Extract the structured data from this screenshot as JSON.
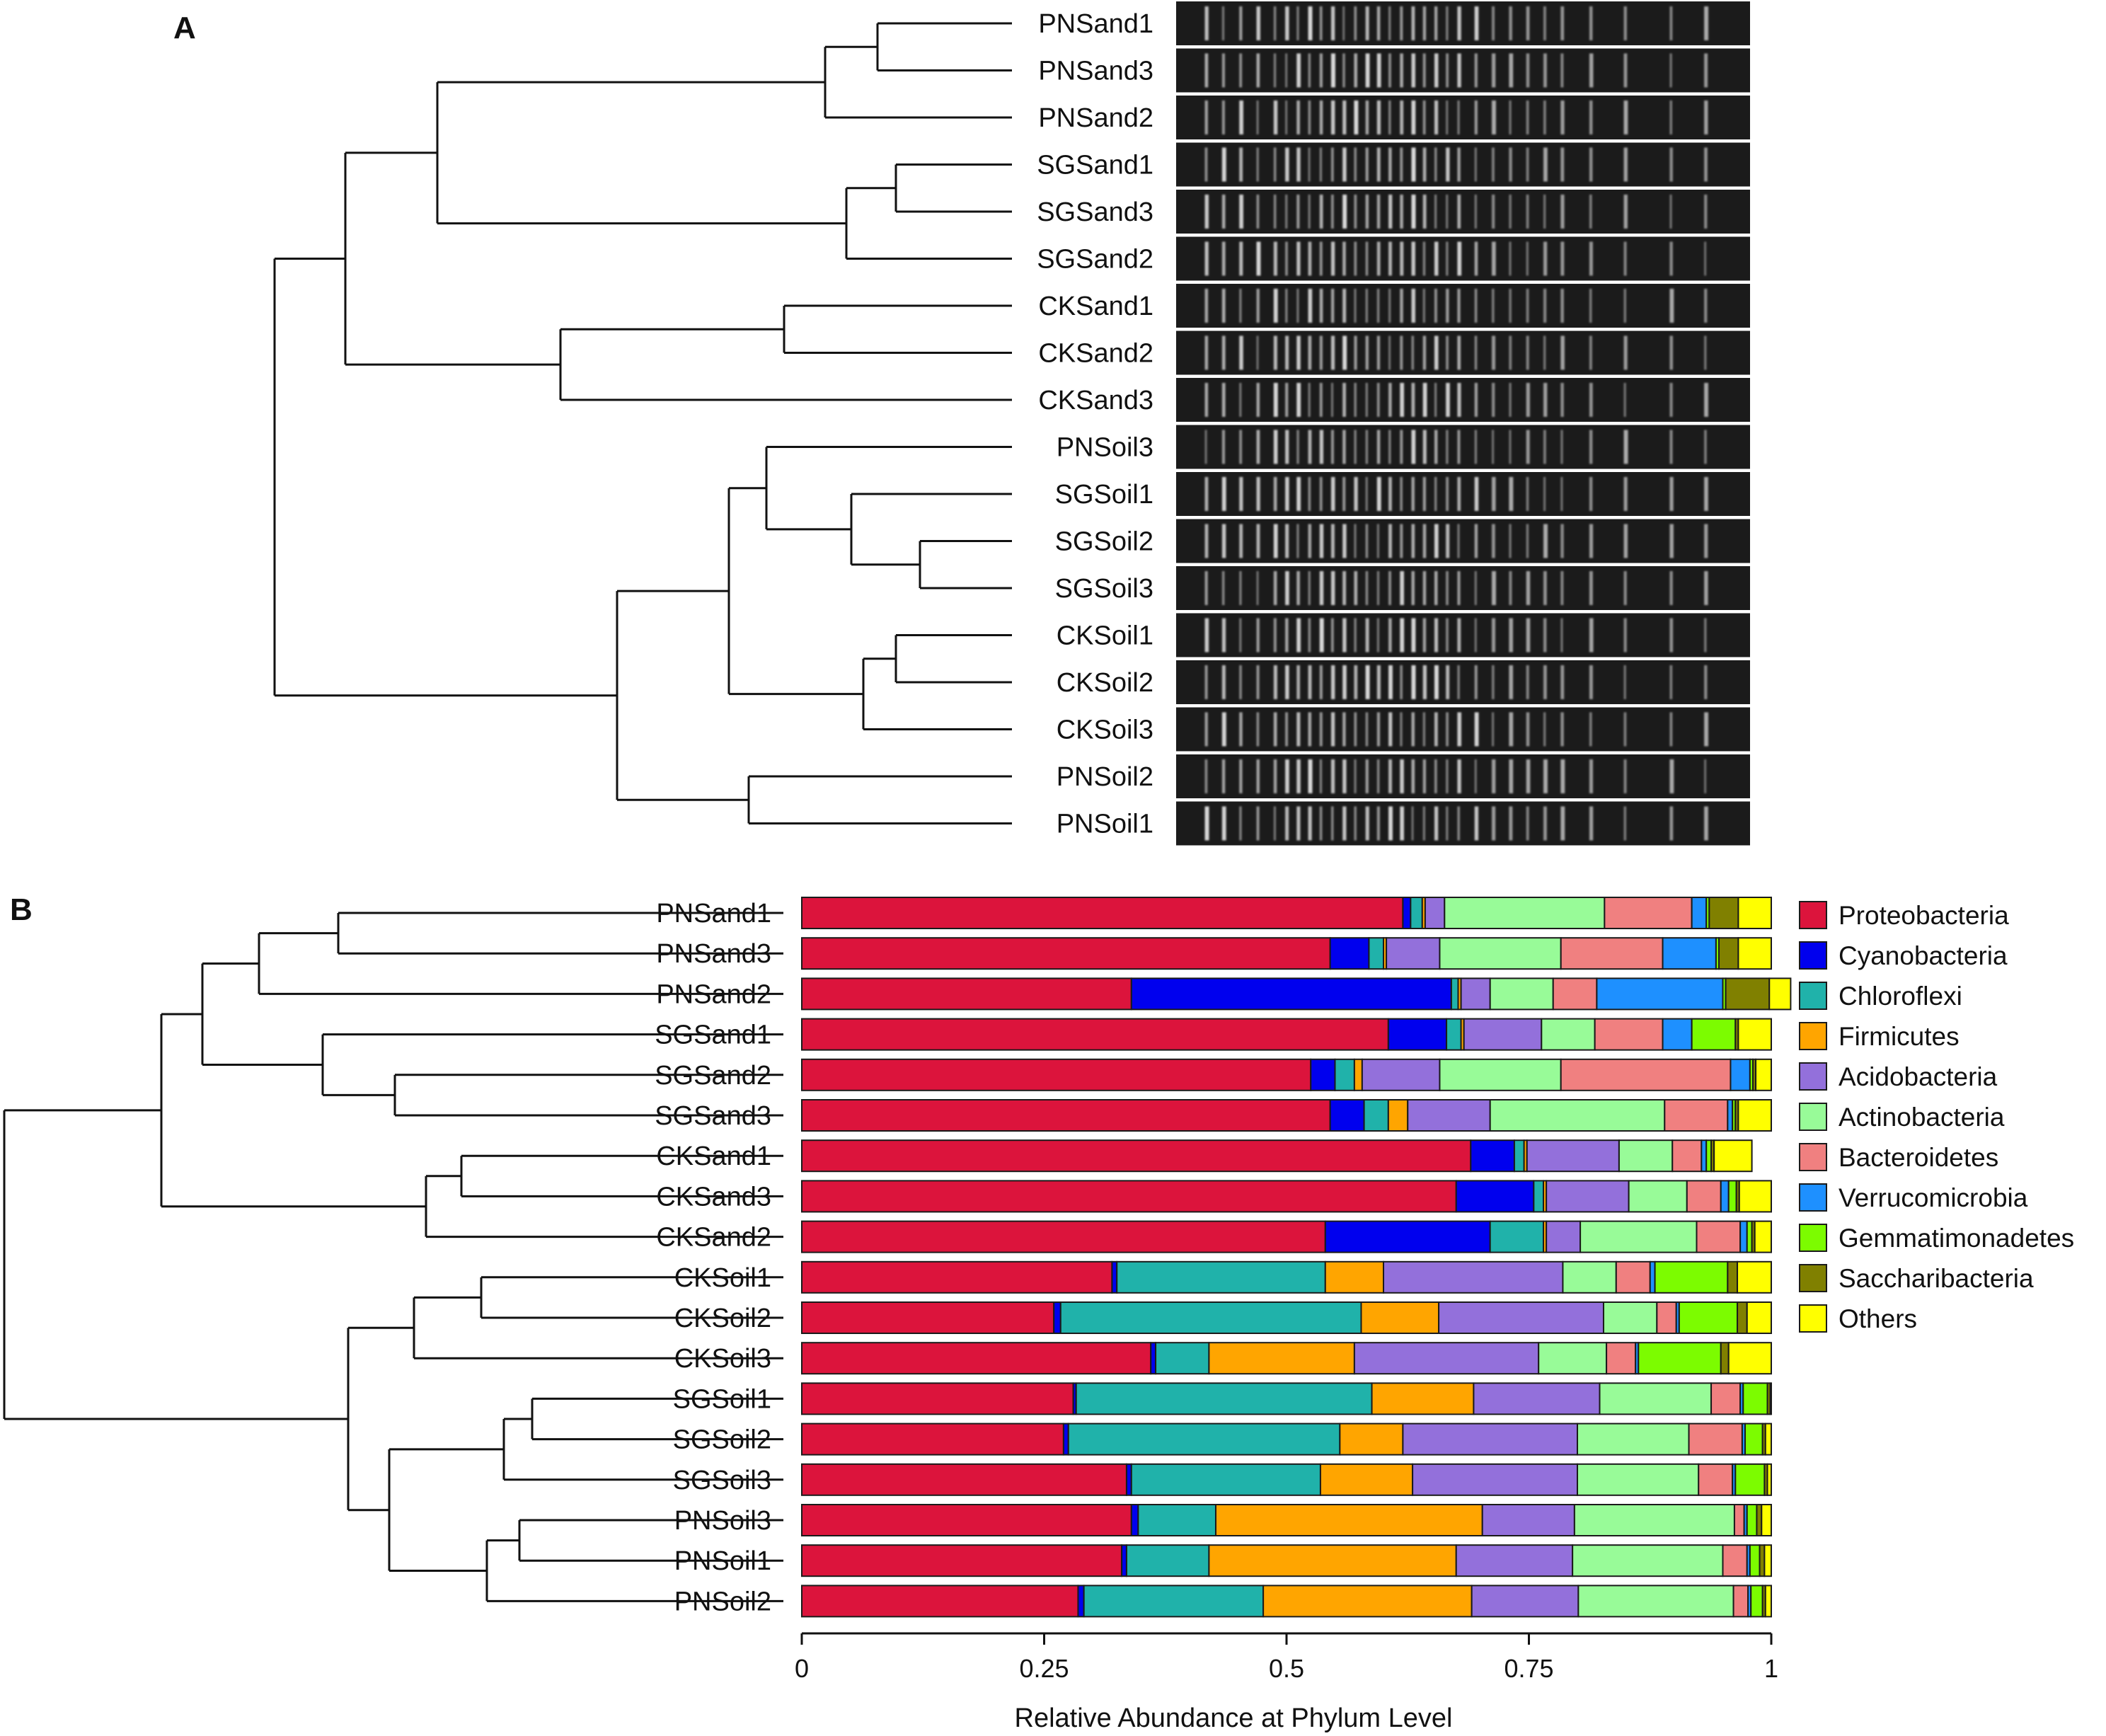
{
  "chart_data": [
    {
      "panel": "A",
      "type": "dendrogram_gel",
      "samples": [
        "PNSand1",
        "PNSand3",
        "PNSand2",
        "SGSand1",
        "SGSand3",
        "SGSand2",
        "CKSand1",
        "CKSand2",
        "CKSand3",
        "PNSoil3",
        "SGSoil1",
        "SGSoil2",
        "SGSoil3",
        "CKSoil1",
        "CKSoil2",
        "CKSoil3",
        "PNSoil2",
        "PNSoil1"
      ]
    },
    {
      "panel": "B",
      "type": "bar",
      "orientation": "horizontal",
      "stacked": true,
      "xlabel": "Relative Abundance at Phylum Level",
      "xlim": [
        0,
        1
      ],
      "xticks": [
        "0",
        "0.25",
        "0.5",
        "0.75",
        "1"
      ],
      "legend_position": "right",
      "categories": [
        "PNSand1",
        "PNSand3",
        "PNSand2",
        "SGSand1",
        "SGSand2",
        "SGSand3",
        "CKSand1",
        "CKSand3",
        "CKSand2",
        "CKSoil1",
        "CKSoil2",
        "CKSoil3",
        "SGSoil1",
        "SGSoil2",
        "SGSoil3",
        "PNSoil3",
        "PNSoil1",
        "PNSoil2"
      ],
      "series": [
        {
          "name": "Proteobacteria",
          "color": "#DC143C",
          "values": [
            0.62,
            0.545,
            0.34,
            0.605,
            0.525,
            0.545,
            0.69,
            0.675,
            0.54,
            0.32,
            0.26,
            0.36,
            0.28,
            0.27,
            0.335,
            0.34,
            0.33,
            0.285
          ]
        },
        {
          "name": "Cyanobacteria",
          "color": "#0000EE",
          "values": [
            0.008,
            0.04,
            0.33,
            0.06,
            0.025,
            0.035,
            0.045,
            0.08,
            0.17,
            0.005,
            0.007,
            0.005,
            0.003,
            0.005,
            0.005,
            0.007,
            0.005,
            0.006
          ]
        },
        {
          "name": "Chloroflexi",
          "color": "#20B2AA",
          "values": [
            0.012,
            0.015,
            0.007,
            0.015,
            0.02,
            0.025,
            0.01,
            0.01,
            0.055,
            0.215,
            0.31,
            0.055,
            0.305,
            0.28,
            0.195,
            0.08,
            0.085,
            0.185
          ]
        },
        {
          "name": "Firmicutes",
          "color": "#FFA500",
          "values": [
            0.003,
            0.003,
            0.003,
            0.003,
            0.008,
            0.02,
            0.003,
            0.003,
            0.003,
            0.06,
            0.08,
            0.15,
            0.105,
            0.065,
            0.095,
            0.275,
            0.255,
            0.215
          ]
        },
        {
          "name": "Acidobacteria",
          "color": "#9370DB",
          "values": [
            0.02,
            0.055,
            0.03,
            0.08,
            0.08,
            0.085,
            0.095,
            0.085,
            0.035,
            0.185,
            0.17,
            0.19,
            0.13,
            0.18,
            0.17,
            0.095,
            0.12,
            0.11
          ]
        },
        {
          "name": "Actinobacteria",
          "color": "#98FB98",
          "values": [
            0.165,
            0.125,
            0.065,
            0.055,
            0.125,
            0.18,
            0.055,
            0.06,
            0.12,
            0.055,
            0.055,
            0.07,
            0.115,
            0.115,
            0.125,
            0.165,
            0.155,
            0.16
          ]
        },
        {
          "name": "Bacteroidetes",
          "color": "#F08080",
          "values": [
            0.09,
            0.105,
            0.045,
            0.07,
            0.175,
            0.065,
            0.03,
            0.035,
            0.045,
            0.035,
            0.02,
            0.03,
            0.03,
            0.055,
            0.035,
            0.01,
            0.025,
            0.015
          ]
        },
        {
          "name": "Verrucomicrobia",
          "color": "#1E90FF",
          "values": [
            0.015,
            0.055,
            0.13,
            0.03,
            0.02,
            0.005,
            0.005,
            0.008,
            0.007,
            0.005,
            0.003,
            0.003,
            0.003,
            0.003,
            0.003,
            0.003,
            0.003,
            0.003
          ]
        },
        {
          "name": "Gemmatimonadetes",
          "color": "#7CFC00",
          "values": [
            0.003,
            0.003,
            0.003,
            0.045,
            0.003,
            0.003,
            0.005,
            0.008,
            0.005,
            0.075,
            0.06,
            0.085,
            0.025,
            0.018,
            0.03,
            0.01,
            0.01,
            0.012
          ]
        },
        {
          "name": "Saccharibacteria",
          "color": "#808000",
          "values": [
            0.03,
            0.02,
            0.045,
            0.003,
            0.003,
            0.003,
            0.003,
            0.003,
            0.003,
            0.01,
            0.01,
            0.008,
            0.003,
            0.003,
            0.003,
            0.005,
            0.005,
            0.003
          ]
        },
        {
          "name": "Others",
          "color": "#FFFF00",
          "values": [
            0.034,
            0.034,
            0.022,
            0.034,
            0.016,
            0.034,
            0.039,
            0.033,
            0.017,
            0.035,
            0.025,
            0.044,
            0.001,
            0.006,
            0.004,
            0.01,
            0.007,
            0.006
          ]
        }
      ]
    }
  ]
}
